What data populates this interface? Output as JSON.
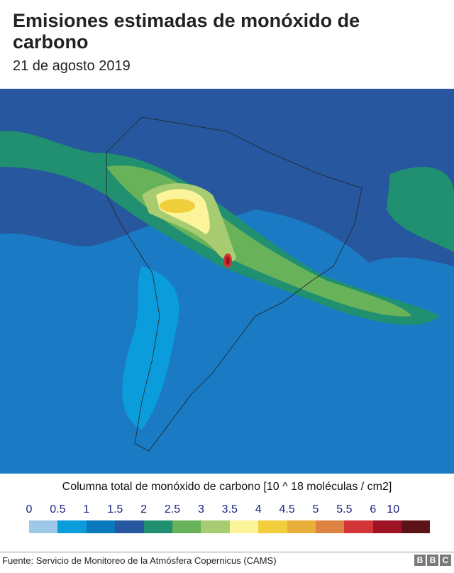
{
  "title": "Emisiones estimadas de monóxido de carbono",
  "date": "21 de agosto 2019",
  "legend": {
    "title": "Columna total de monóxido de carbono [10 ^ 18 moléculas / cm2]",
    "ticks": [
      "0",
      "0.5",
      "1",
      "1.5",
      "2",
      "2.5",
      "3",
      "3.5",
      "4",
      "4.5",
      "5",
      "5.5",
      "6",
      "10"
    ],
    "colors": [
      "#9ec8e8",
      "#0b9ddb",
      "#0a78bd",
      "#27579e",
      "#209070",
      "#68b25a",
      "#a8cc72",
      "#fbf49a",
      "#f1cf3c",
      "#eaae3a",
      "#dd8443",
      "#d23535",
      "#9d1424",
      "#5c1318"
    ]
  },
  "source": "Fuente: Servicio de Monitoreo de la Atmósfera Copernicus (CAMS)",
  "logo": "BBC"
}
